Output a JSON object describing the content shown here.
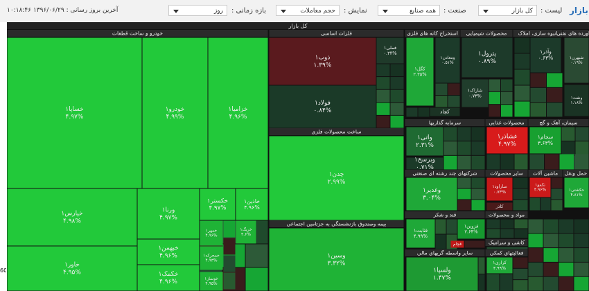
{
  "toolbar": {
    "brand": "بازار",
    "list_label": "لیست :",
    "list_value": "کل بازار",
    "industry_label": "صنعت :",
    "industry_value": "همه صنایع",
    "display_label": "نمایش :",
    "display_value": "حجم معاملات",
    "period_label": "بازه زمانی :",
    "period_value": "روز",
    "updated": "آخرین بروز رسانی : ۱۳۹۶/۰۶/۲۹ ۱۰:۱۸:۴۶",
    "edge_label": "60"
  },
  "treemap": {
    "title": "کل بازار",
    "sectors": [
      {
        "name": "خودرو و ساخت قطعات",
        "cells": [
          {
            "symbol": "خساپا۱",
            "change": "۴.۹۷%"
          },
          {
            "symbol": "خودرو۱",
            "change": "۴.۹۹%"
          },
          {
            "symbol": "خزامیا۱",
            "change": "۴.۹۶%"
          },
          {
            "symbol": "خپارس۱",
            "change": "۴.۹۸%"
          },
          {
            "symbol": "خاور۱",
            "change": "۴.۹۵%"
          },
          {
            "symbol": "ورنا۱",
            "change": "۴.۹۷%"
          },
          {
            "symbol": "خبهمن۱",
            "change": "۴.۹۶%"
          },
          {
            "symbol": "خکمک۱",
            "change": "۴.۹۶%"
          },
          {
            "symbol": "خکستر۱",
            "change": "۴.۹۷%"
          },
          {
            "symbol": "خاذین۱",
            "change": "۴.۹۶%"
          },
          {
            "symbol": "خمهر۱",
            "change": "۴.۹۶%"
          },
          {
            "symbol": "خریگ۱",
            "change": "۴.۶%"
          },
          {
            "symbol": "خمحرکه۱",
            "change": "۴.۹۳%"
          },
          {
            "symbol": "خوساز۱",
            "change": "۴.۹۵%"
          }
        ]
      },
      {
        "name": "فلزات اساسی",
        "cells": [
          {
            "symbol": "ذوب۱",
            "change": "۱.۳۹%"
          },
          {
            "symbol": "فولاد۱",
            "change": "۰.۸۴%"
          },
          {
            "symbol": "فملی۱",
            "change": "۰.۳۴%"
          }
        ]
      },
      {
        "name": "ساخت محصولات فلزی",
        "cells": [
          {
            "symbol": "چدن۱",
            "change": "۲.۹۹%"
          }
        ]
      },
      {
        "name": "بیمه وصندوق بازنشستگی به جزتامین اجتماعی",
        "cells": [
          {
            "symbol": "وسین۱",
            "change": "۳.۳۲%"
          }
        ]
      },
      {
        "name": "استخراج کانه های فلزی",
        "cells": [
          {
            "symbol": "کگل۱",
            "change": "۲.۳۵%"
          },
          {
            "symbol": "ومعادن۱",
            "change": "۰.۵۱%"
          },
          {
            "symbol": "کچاد"
          }
        ]
      },
      {
        "name": "محصولات شیمیایی",
        "cells": [
          {
            "symbol": "پترول۱",
            "change": "۰.۸۹%"
          },
          {
            "symbol": "شاراک۱",
            "change": "۰.۷۳%"
          }
        ]
      },
      {
        "name": "انبوه سازی، املاک",
        "cells": [
          {
            "symbol": "وآذر۱",
            "change": "۰.۶۳%"
          }
        ]
      },
      {
        "name": "فراورده های نفتی",
        "cells": [
          {
            "symbol": "شبهرن۱",
            "change": "۰.۱۹%"
          },
          {
            "symbol": "ونفت۱",
            "change": "۱.۱۸%"
          }
        ]
      },
      {
        "name": "سرمایه گذاریها",
        "cells": [
          {
            "symbol": "واتی۱",
            "change": "۲.۳۱%"
          },
          {
            "symbol": "وبرسخ۱",
            "change": "۰.۷۱%"
          }
        ]
      },
      {
        "name": "محصولات غذایی",
        "cells": [
          {
            "symbol": "غشاذر۱",
            "change": "۴.۹۷%"
          }
        ]
      },
      {
        "name": "سیمان، آهک و گچ",
        "cells": [
          {
            "symbol": "سجام۱",
            "change": "۳.۶۳%"
          }
        ]
      },
      {
        "name": "شرکتهای چند رشته ای صنعتی",
        "cells": [
          {
            "symbol": "وغدیر۱",
            "change": "۳.۰۴%"
          }
        ]
      },
      {
        "name": "سایر محصولات",
        "cells": [
          {
            "symbol": "ساراود۱",
            "change": "۰.۷۳%"
          },
          {
            "symbol": "کاذر"
          }
        ]
      },
      {
        "name": "ماشین آلات",
        "cells": [
          {
            "symbol": "تکمو۱",
            "change": "۴.۹۶%"
          }
        ]
      },
      {
        "name": "حمل ونقل",
        "cells": [
          {
            "symbol": "حکشتی۱",
            "change": "۴.۸۱%"
          }
        ]
      },
      {
        "name": "قند و شکر",
        "cells": [
          {
            "symbol": "قثابت۱",
            "change": "۴.۹۹%"
          },
          {
            "symbol": "قزوین۱",
            "change": "۲.۶۴%"
          },
          {
            "symbol": "قچام"
          }
        ]
      },
      {
        "name": "مواد و محصولات",
        "cells": []
      },
      {
        "name": "کاشی و سرامیک",
        "cells": []
      },
      {
        "name": "سایر واسطه گریهای مالی",
        "cells": [
          {
            "symbol": "ولسپا۱",
            "change": "۱.۴۷%"
          }
        ]
      },
      {
        "name": "فعالیتهای کمکی",
        "cells": [
          {
            "symbol": "کرازی۱",
            "change": "۴.۹۹%"
          }
        ]
      }
    ]
  }
}
